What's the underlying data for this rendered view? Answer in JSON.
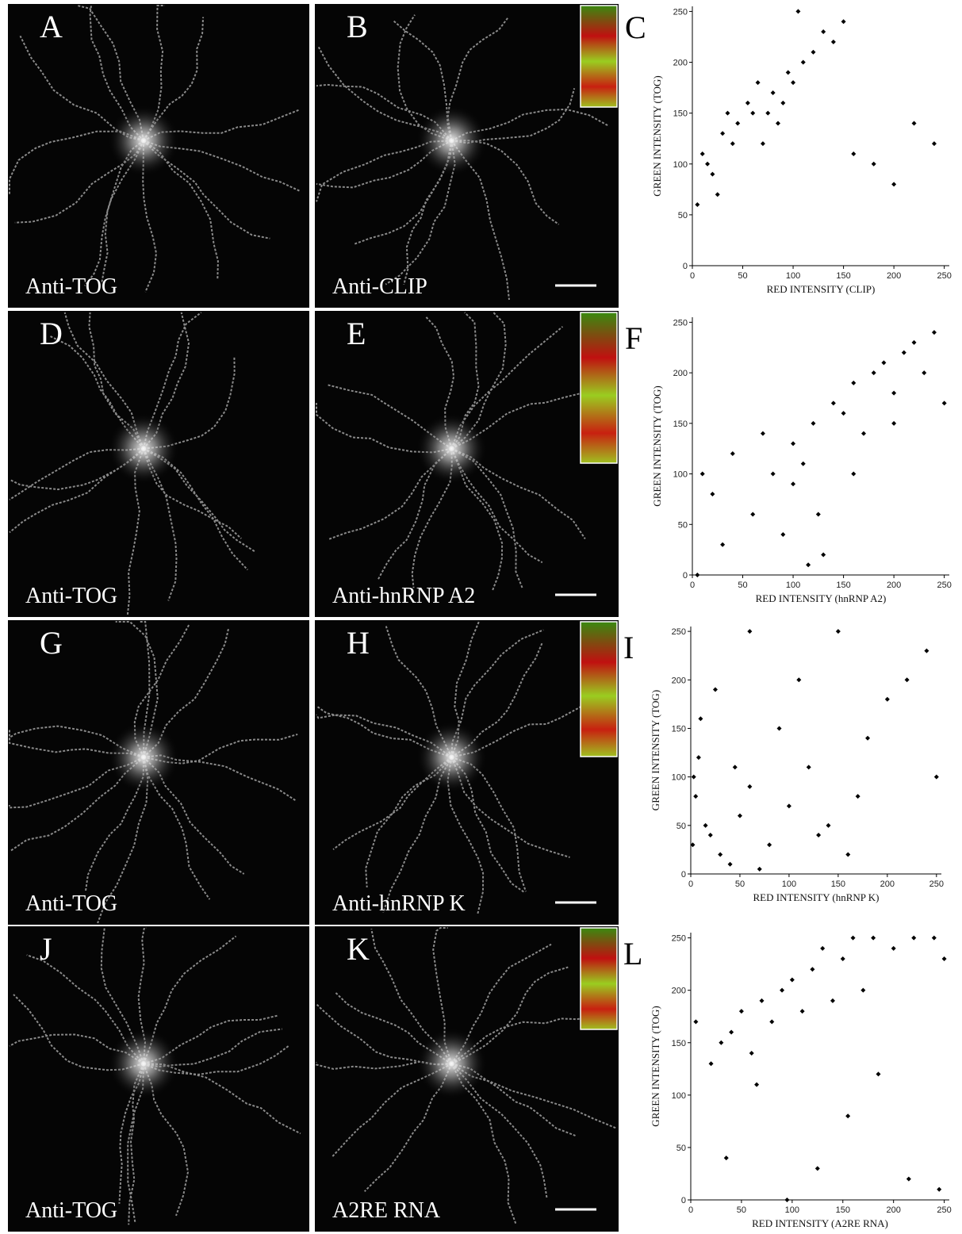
{
  "micrographs": [
    {
      "panel": "A",
      "label": "Anti-TOG"
    },
    {
      "panel": "B",
      "label": "Anti-CLIP"
    },
    {
      "panel": "D",
      "label": "Anti-TOG"
    },
    {
      "panel": "E",
      "label": "Anti-hnRNP A2"
    },
    {
      "panel": "G",
      "label": "Anti-TOG"
    },
    {
      "panel": "H",
      "label": "Anti-hnRNP K"
    },
    {
      "panel": "J",
      "label": "Anti-TOG"
    },
    {
      "panel": "K",
      "label": "A2RE RNA"
    }
  ],
  "chart_data": [
    {
      "type": "scatter",
      "panel": "C",
      "xlabel": "RED INTENSITY (CLIP)",
      "ylabel": "GREEN INTENSITY (TOG)",
      "color": "#000000",
      "x": [
        10,
        20,
        30,
        45,
        60,
        70,
        80,
        90,
        100,
        110,
        120,
        130,
        5,
        15,
        40,
        55,
        75,
        95,
        140,
        150,
        160,
        180,
        200,
        220,
        240,
        25,
        35,
        65,
        85,
        105
      ],
      "y": [
        110,
        90,
        130,
        140,
        150,
        120,
        170,
        160,
        180,
        200,
        210,
        230,
        60,
        100,
        120,
        160,
        150,
        190,
        220,
        240,
        110,
        100,
        80,
        140,
        120,
        70,
        150,
        180,
        140,
        250
      ],
      "xlim": [
        0,
        255
      ],
      "ylim": [
        0,
        255
      ],
      "xticks": [
        0,
        50,
        100,
        150,
        200,
        250
      ],
      "yticks": [
        0,
        50,
        100,
        150,
        200,
        250
      ]
    },
    {
      "type": "scatter",
      "panel": "F",
      "xlabel": "RED INTENSITY (hnRNP A2)",
      "ylabel": "GREEN INTENSITY (TOG)",
      "color": "#000000",
      "x": [
        20,
        40,
        60,
        80,
        90,
        100,
        110,
        120,
        130,
        140,
        150,
        160,
        170,
        180,
        190,
        200,
        210,
        220,
        240,
        250,
        10,
        30,
        70,
        100,
        115,
        125,
        160,
        200,
        230,
        5
      ],
      "y": [
        80,
        120,
        60,
        100,
        40,
        130,
        110,
        150,
        20,
        170,
        160,
        190,
        140,
        200,
        210,
        180,
        220,
        230,
        240,
        170,
        100,
        30,
        140,
        90,
        10,
        60,
        100,
        150,
        200,
        0
      ],
      "xlim": [
        0,
        255
      ],
      "ylim": [
        0,
        255
      ],
      "xticks": [
        0,
        50,
        100,
        150,
        200,
        250
      ],
      "yticks": [
        0,
        50,
        100,
        150,
        200,
        250
      ]
    },
    {
      "type": "scatter",
      "panel": "I",
      "xlabel": "RED INTENSITY (hnRNP K)",
      "ylabel": "GREEN INTENSITY (TOG)",
      "color": "#000000",
      "x": [
        2,
        5,
        8,
        10,
        15,
        20,
        30,
        40,
        50,
        60,
        80,
        100,
        120,
        140,
        160,
        180,
        200,
        220,
        240,
        250,
        3,
        25,
        45,
        70,
        90,
        110,
        130,
        150,
        170,
        60
      ],
      "y": [
        30,
        80,
        120,
        160,
        50,
        40,
        20,
        10,
        60,
        90,
        30,
        70,
        110,
        50,
        20,
        140,
        180,
        200,
        230,
        100,
        100,
        190,
        110,
        5,
        150,
        200,
        40,
        250,
        80,
        250
      ],
      "xlim": [
        0,
        255
      ],
      "ylim": [
        0,
        255
      ],
      "xticks": [
        0,
        50,
        100,
        150,
        200,
        250
      ],
      "yticks": [
        0,
        50,
        100,
        150,
        200,
        250
      ]
    },
    {
      "type": "scatter",
      "panel": "L",
      "xlabel": "RED INTENSITY (A2RE RNA)",
      "ylabel": "GREEN INTENSITY (TOG)",
      "color": "#000000",
      "x": [
        5,
        20,
        30,
        40,
        50,
        60,
        70,
        80,
        90,
        100,
        110,
        120,
        130,
        140,
        150,
        160,
        170,
        180,
        200,
        220,
        240,
        250,
        35,
        65,
        95,
        125,
        155,
        185,
        215,
        245
      ],
      "y": [
        170,
        130,
        150,
        160,
        180,
        140,
        190,
        170,
        200,
        210,
        180,
        220,
        240,
        190,
        230,
        250,
        200,
        250,
        240,
        250,
        250,
        230,
        40,
        110,
        0,
        30,
        80,
        120,
        20,
        10
      ],
      "xlim": [
        0,
        255
      ],
      "ylim": [
        0,
        255
      ],
      "xticks": [
        0,
        50,
        100,
        150,
        200,
        250
      ],
      "yticks": [
        0,
        50,
        100,
        150,
        200,
        250
      ]
    }
  ]
}
